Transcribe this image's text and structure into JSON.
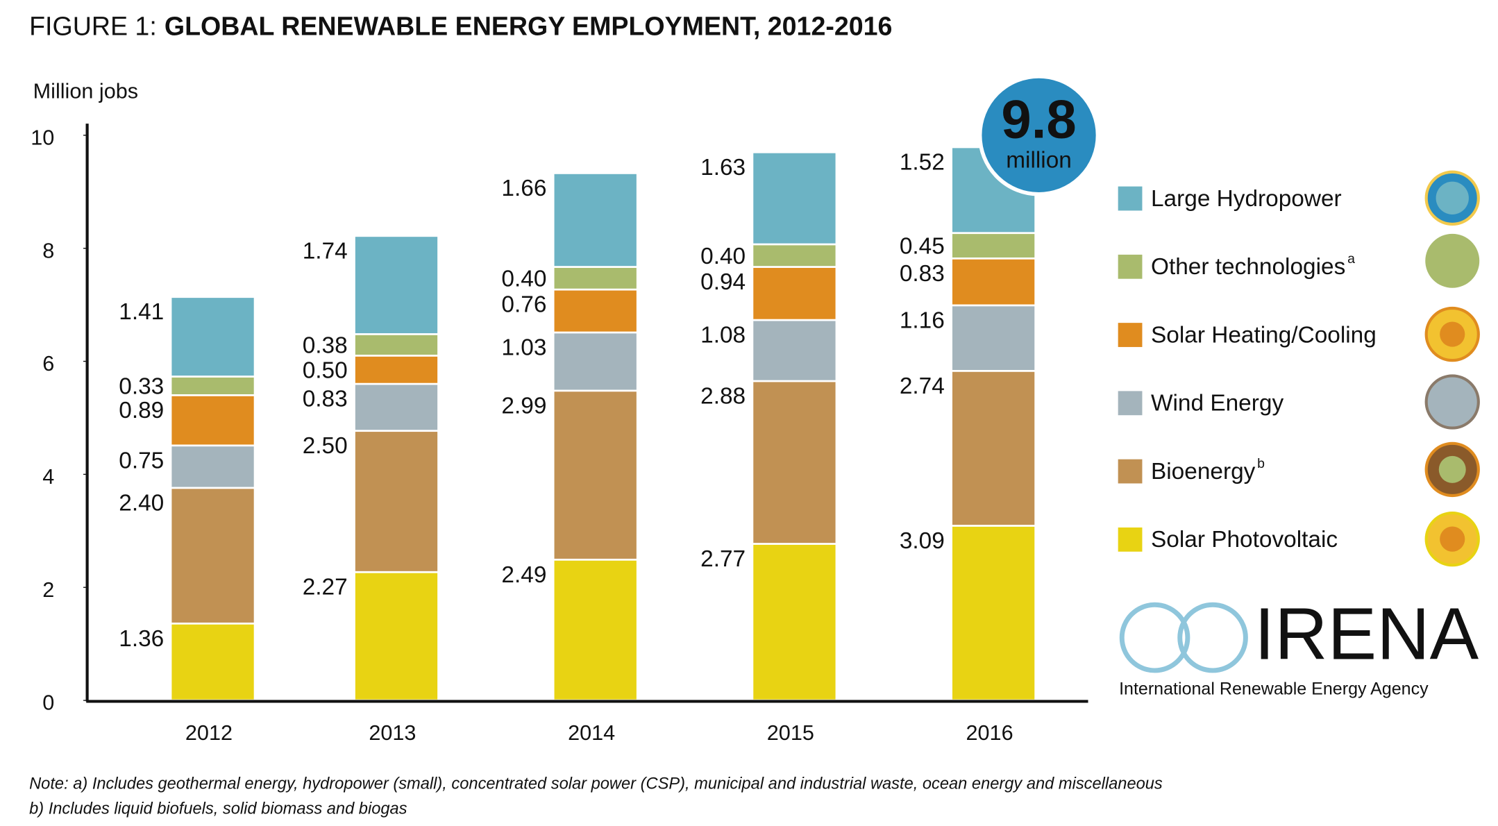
{
  "chart_data": {
    "type": "stacked-bar",
    "title_label": "FIGURE 1:",
    "title": "GLOBAL RENEWABLE ENERGY EMPLOYMENT, 2012-2016",
    "y_axis_label": "Million jobs",
    "categories": [
      "2012",
      "2013",
      "2014",
      "2015",
      "2016"
    ],
    "series": [
      {
        "name": "Solar Photovoltaic",
        "color": "#e8d313",
        "values": [
          1.36,
          2.27,
          2.49,
          2.77,
          3.09
        ],
        "value_labels": [
          "1.36",
          "2.27",
          "2.49",
          "2.77",
          "3.09"
        ]
      },
      {
        "name": "Bioenergy",
        "footnote": "b",
        "color": "#c19153",
        "values": [
          2.4,
          2.5,
          2.99,
          2.88,
          2.74
        ],
        "value_labels": [
          "2.40",
          "2.50",
          "2.99",
          "2.88",
          "2.74"
        ]
      },
      {
        "name": "Wind Energy",
        "color": "#a4b4bc",
        "values": [
          0.75,
          0.83,
          1.03,
          1.08,
          1.16
        ],
        "value_labels": [
          "0.75",
          "0.83",
          "1.03",
          "1.08",
          "1.16"
        ]
      },
      {
        "name": "Solar Heating/Cooling",
        "color": "#e08c1f",
        "values": [
          0.89,
          0.5,
          0.76,
          0.94,
          0.83
        ],
        "value_labels": [
          "0.89",
          "0.50",
          "0.76",
          "0.94",
          "0.83"
        ]
      },
      {
        "name": "Other technologies",
        "footnote": "a",
        "color": "#a9bb6d",
        "values": [
          0.33,
          0.38,
          0.4,
          0.4,
          0.45
        ],
        "value_labels": [
          "0.33",
          "0.38",
          "0.40",
          "0.40",
          "0.45"
        ]
      },
      {
        "name": "Large Hydropower",
        "color": "#6cb3c4",
        "values": [
          1.41,
          1.74,
          1.66,
          1.63,
          1.52
        ],
        "value_labels": [
          "1.41",
          "1.74",
          "1.66",
          "1.63",
          "1.52"
        ]
      }
    ],
    "ylim": [
      0,
      10
    ],
    "yticks": [
      0,
      2,
      4,
      6,
      8,
      10
    ],
    "grid": false,
    "badge": {
      "value": "9.8",
      "unit": "million"
    },
    "notes": [
      "Note: a) Includes geothermal energy, hydropower (small), concentrated solar power (CSP), municipal and industrial waste, ocean energy and miscellaneous",
      "b) Includes liquid biofuels, solid biomass and biogas"
    ],
    "logo": {
      "name": "IRENA",
      "subtitle": "International Renewable Energy Agency"
    }
  }
}
